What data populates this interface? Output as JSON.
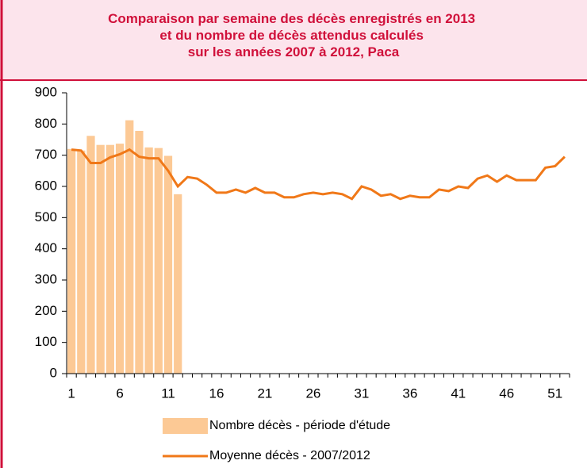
{
  "chart_data": {
    "type": "bar_line",
    "title": [
      "Comparaison par semaine des décès enregistrés en 2013",
      "et du nombre de décès attendus calculés",
      "sur les années 2007 à 2012, Paca"
    ],
    "categories": [
      1,
      null,
      null,
      null,
      null,
      6,
      null,
      null,
      null,
      null,
      11,
      null,
      null,
      null,
      null,
      16,
      null,
      null,
      null,
      null,
      21,
      null,
      null,
      null,
      null,
      26,
      null,
      null,
      null,
      null,
      31,
      null,
      null,
      null,
      null,
      36,
      null,
      null,
      null,
      null,
      41,
      null,
      null,
      null,
      null,
      46,
      null,
      null,
      null,
      null,
      51,
      null
    ],
    "series": [
      {
        "name": "Nombre décès - période d'étude",
        "type": "bar",
        "color": "#fcc995",
        "values": [
          720,
          715,
          762,
          733,
          733,
          737,
          812,
          778,
          725,
          723,
          698,
          575,
          null,
          null,
          null,
          null,
          null,
          null,
          null,
          null,
          null,
          null,
          null,
          null,
          null,
          null,
          null,
          null,
          null,
          null,
          null,
          null,
          null,
          null,
          null,
          null,
          null,
          null,
          null,
          null,
          null,
          null,
          null,
          null,
          null,
          null,
          null,
          null,
          null,
          null,
          null,
          null
        ]
      },
      {
        "name": "Moyenne décès - 2007/2012",
        "type": "line",
        "color": "#f07818",
        "values": [
          718,
          715,
          675,
          675,
          693,
          703,
          718,
          695,
          690,
          690,
          650,
          600,
          630,
          625,
          605,
          580,
          580,
          590,
          580,
          595,
          580,
          580,
          565,
          565,
          575,
          580,
          575,
          580,
          575,
          560,
          600,
          590,
          570,
          575,
          560,
          570,
          565,
          565,
          590,
          585,
          600,
          595,
          625,
          635,
          615,
          635,
          620,
          620,
          620,
          660,
          665,
          695
        ]
      }
    ],
    "ylim": [
      0,
      900
    ],
    "yticks": [
      0,
      100,
      200,
      300,
      400,
      500,
      600,
      700,
      800,
      900
    ],
    "grid": false
  }
}
